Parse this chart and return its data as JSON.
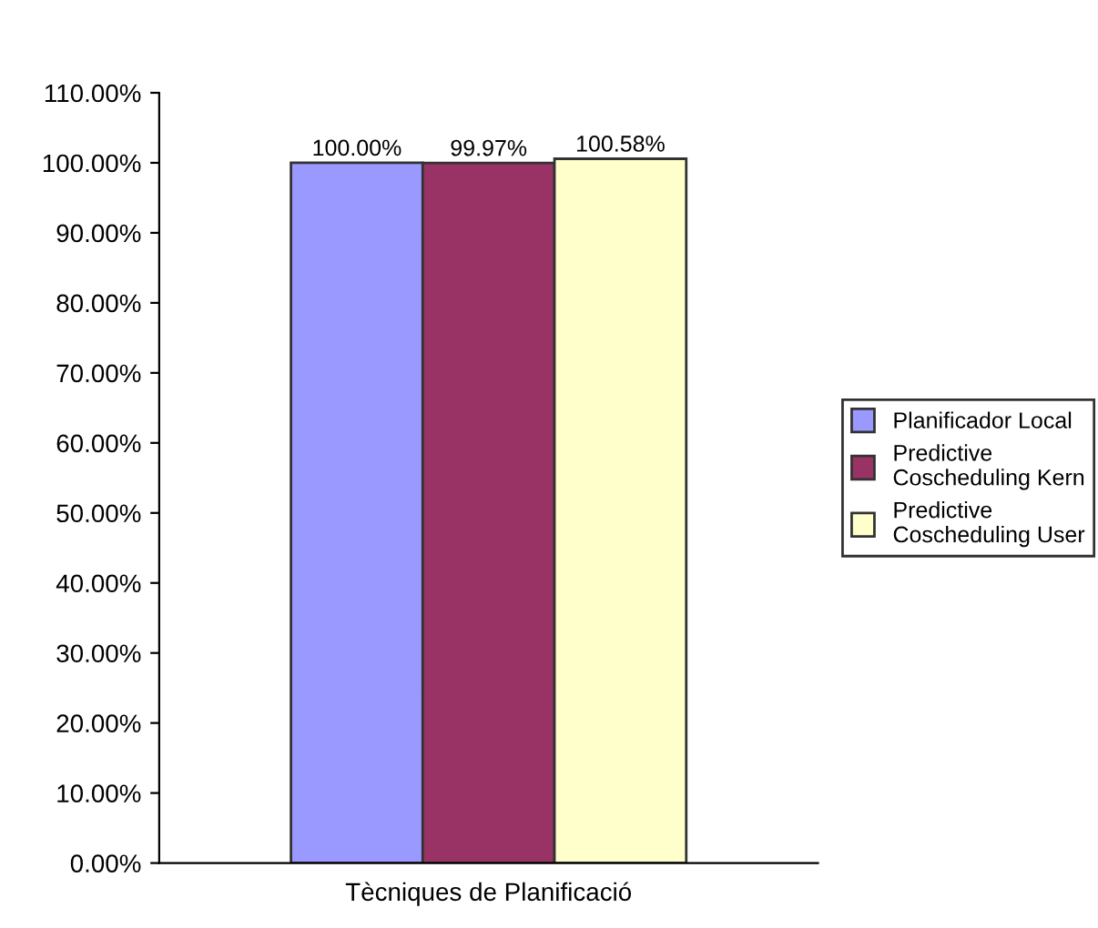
{
  "chart_data": {
    "type": "bar",
    "xlabel": "Tècniques de Planificació",
    "categories": [
      null
    ],
    "series": [
      {
        "name": "Planificador Local",
        "color": "#9999ff",
        "values": [
          100.0
        ],
        "value_labels": [
          "100.00%"
        ]
      },
      {
        "name": "Predictive Coscheduling Kern",
        "color": "#993366",
        "values": [
          99.97
        ],
        "value_labels": [
          "99.97%"
        ]
      },
      {
        "name": "Predictive Coscheduling User",
        "color": "#ffffcc",
        "values": [
          100.58
        ],
        "value_labels": [
          "100.58%"
        ]
      }
    ],
    "ylim": [
      0,
      110
    ],
    "yticks": [
      {
        "value": 0,
        "label": "0.00%"
      },
      {
        "value": 10,
        "label": "10.00%"
      },
      {
        "value": 20,
        "label": "20.00%"
      },
      {
        "value": 30,
        "label": "30.00%"
      },
      {
        "value": 40,
        "label": "40.00%"
      },
      {
        "value": 50,
        "label": "50.00%"
      },
      {
        "value": 60,
        "label": "60.00%"
      },
      {
        "value": 70,
        "label": "70.00%"
      },
      {
        "value": 80,
        "label": "80.00%"
      },
      {
        "value": 90,
        "label": "90.00%"
      },
      {
        "value": 100,
        "label": "100.00%"
      },
      {
        "value": 110,
        "label": "110.00%"
      }
    ],
    "grid": false,
    "legend": "right"
  }
}
